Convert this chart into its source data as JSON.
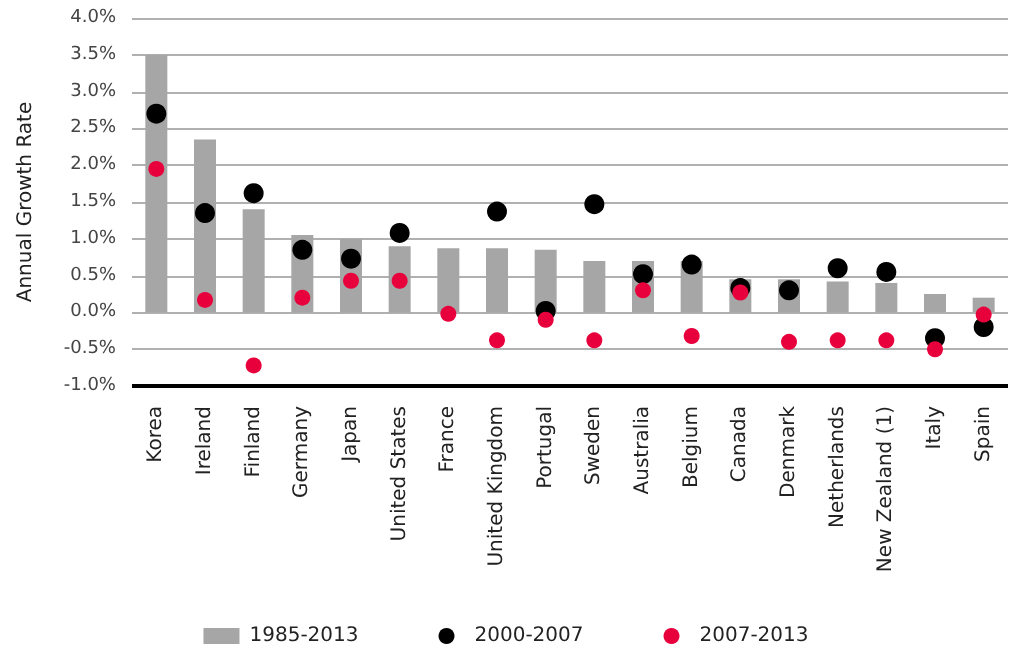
{
  "chart_data": {
    "type": "bar",
    "ylabel": "Annual Growth Rate",
    "categories": [
      "Korea",
      "Ireland",
      "Finland",
      "Germany",
      "Japan",
      "United States",
      "France",
      "United Kingdom",
      "Portugal",
      "Sweden",
      "Australia",
      "Belgium",
      "Canada",
      "Denmark",
      "Netherlands",
      "New Zealand (1)",
      "Italy",
      "Spain"
    ],
    "series": [
      {
        "name": "1985-2013",
        "color": "#a6a6a6",
        "values": [
          3.5,
          2.35,
          1.4,
          1.05,
          1.0,
          0.9,
          0.87,
          0.87,
          0.85,
          0.7,
          0.7,
          0.7,
          0.45,
          0.45,
          0.42,
          0.4,
          0.25,
          0.2
        ]
      },
      {
        "name": "2000-2007",
        "type": "scatter",
        "color": "#000000",
        "values": [
          2.7,
          1.35,
          1.62,
          0.85,
          0.73,
          1.08,
          null,
          1.37,
          0.02,
          1.47,
          0.52,
          0.65,
          0.33,
          0.3,
          0.6,
          0.55,
          -0.35,
          -0.2
        ]
      },
      {
        "name": "2007-2013",
        "type": "scatter",
        "color": "#e8003d",
        "values": [
          1.95,
          0.17,
          -0.72,
          0.2,
          0.43,
          0.43,
          -0.02,
          -0.38,
          -0.1,
          -0.38,
          0.3,
          -0.32,
          0.27,
          -0.4,
          -0.38,
          -0.38,
          -0.5,
          -0.03
        ]
      }
    ],
    "ylim": [
      -1.0,
      4.0
    ],
    "yticks": [
      {
        "value": -1.0,
        "label": "-1.0%"
      },
      {
        "value": -0.5,
        "label": "-0.5%"
      },
      {
        "value": 0,
        "label": "0.0%"
      },
      {
        "value": 0.5,
        "label": "0.5%"
      },
      {
        "value": 1.0,
        "label": "1.0%"
      },
      {
        "value": 1.5,
        "label": "1.5%"
      },
      {
        "value": 2.0,
        "label": "2.0%"
      },
      {
        "value": 2.5,
        "label": "2.5%"
      },
      {
        "value": 3.0,
        "label": "3.0%"
      },
      {
        "value": 3.5,
        "label": "3.5%"
      },
      {
        "value": 4.0,
        "label": "4.0%"
      }
    ],
    "grid": "y",
    "legend": "bottom",
    "marker": "circle"
  }
}
